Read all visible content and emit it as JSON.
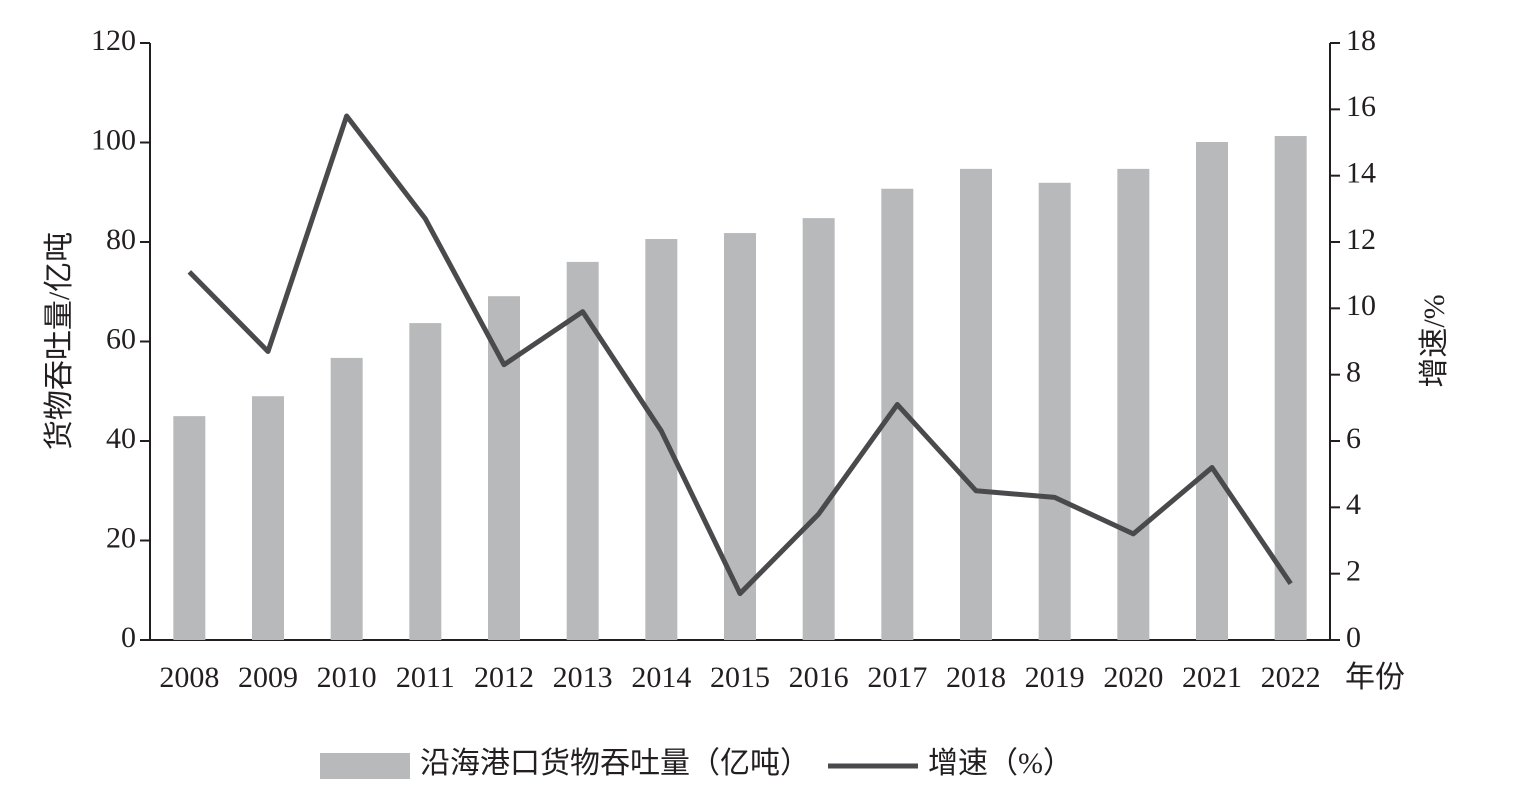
{
  "chart_data": {
    "type": "bar-line",
    "categories": [
      "2008",
      "2009",
      "2010",
      "2011",
      "2012",
      "2013",
      "2014",
      "2015",
      "2016",
      "2017",
      "2018",
      "2019",
      "2020",
      "2021",
      "2022"
    ],
    "series": [
      {
        "name": "沿海港口货物吞吐量（亿吨）",
        "type": "bar",
        "color": "#b8b9bb",
        "axis": "y",
        "values": [
          45.0,
          49.0,
          56.7,
          63.7,
          69.1,
          76.0,
          80.6,
          81.8,
          84.8,
          90.7,
          94.7,
          91.9,
          94.7,
          100.1,
          101.3
        ]
      },
      {
        "name": "增速（%）",
        "type": "line",
        "color": "#4a4a4c",
        "axis": "y2",
        "values": [
          11.1,
          8.7,
          15.8,
          12.7,
          8.3,
          9.9,
          6.3,
          1.4,
          3.8,
          7.1,
          4.5,
          4.3,
          3.2,
          5.2,
          1.7
        ]
      }
    ],
    "y_label": "货物吞吐量/亿吨",
    "y2_label": "增速/%",
    "x_label": "年份",
    "ylim": [
      0,
      120
    ],
    "yticks": [
      0,
      20,
      40,
      60,
      80,
      100,
      120
    ],
    "y2lim": [
      0,
      18
    ],
    "y2ticks": [
      0,
      2,
      4,
      6,
      8,
      10,
      12,
      14,
      16,
      18
    ],
    "grid": false,
    "legend": "bottom"
  }
}
